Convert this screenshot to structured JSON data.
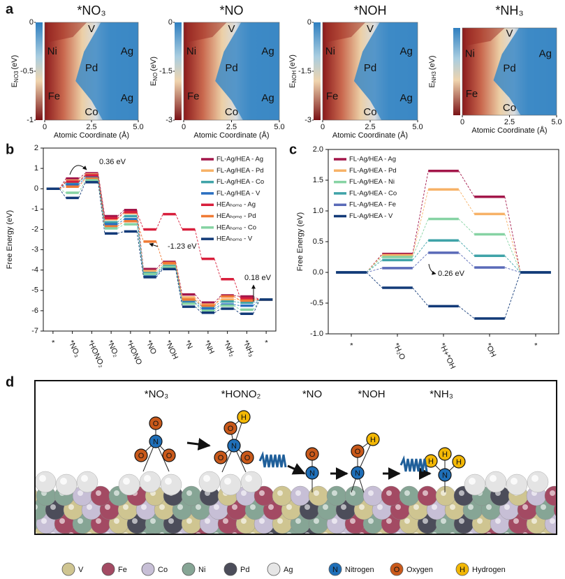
{
  "panel_labels": [
    "a",
    "b",
    "c",
    "d"
  ],
  "chart_data": [
    {
      "type": "heatmap",
      "title": "*NO₃",
      "xlabel": "Atomic Coordinate (Å)",
      "ylabel": {
        "symbol": "E",
        "subscript": "NO3",
        "unit": "(eV)"
      },
      "xlim": [
        0,
        5
      ],
      "xticks": [
        0,
        2.5,
        {
          "value": 5,
          "label": "5.0"
        }
      ],
      "clim": [
        -1,
        0
      ],
      "cticks": [
        0,
        -0.5,
        -1
      ],
      "annotations": [
        "V",
        "Ni",
        "Pd",
        "Ag",
        "Fe",
        "Co",
        "Ag"
      ]
    },
    {
      "type": "heatmap",
      "title": "*NO",
      "xlabel": "Atomic Coordinate (Å)",
      "ylabel": {
        "symbol": "E",
        "subscript": "NO",
        "unit": "(eV)"
      },
      "xlim": [
        0,
        5
      ],
      "xticks": [
        0,
        2.5,
        {
          "value": 5,
          "label": "5.0"
        }
      ],
      "clim": [
        -3,
        0
      ],
      "cticks": [
        0,
        -1.5,
        -3
      ],
      "annotations": [
        "V",
        "Ni",
        "Pd",
        "Ag",
        "Fe",
        "Co",
        "Ag"
      ]
    },
    {
      "type": "heatmap",
      "title": "*NOH",
      "xlabel": "Atomic Coordinate (Å)",
      "ylabel": {
        "symbol": "E",
        "subscript": "NOH",
        "unit": "(eV)"
      },
      "xlim": [
        0,
        5
      ],
      "xticks": [
        0,
        2.5,
        {
          "value": 5,
          "label": "5.0"
        }
      ],
      "clim": [
        -3,
        0
      ],
      "cticks": [
        0,
        -1.5,
        -3
      ],
      "annotations": [
        "V",
        "Ni",
        "Pd",
        "Ag",
        "Fe",
        "Co",
        "Ag"
      ]
    },
    {
      "type": "heatmap",
      "title": "*NH₃",
      "xlabel": "Atomic Coordinate (Å)",
      "ylabel": {
        "symbol": "E",
        "subscript": "NH3",
        "unit": "(eV)"
      },
      "xlim": [
        0,
        5
      ],
      "xticks": [
        0,
        2.5,
        {
          "value": 5,
          "label": "5.0"
        }
      ],
      "annotations": [
        "V",
        "Ni",
        "Pd",
        "Ag",
        "Fe",
        "Co"
      ]
    },
    {
      "type": "energy",
      "ylabel": "Free Energy (eV)",
      "categories": [
        "*",
        "*NO₃",
        "*HONO₂",
        "*NO₂",
        "*HONO",
        "*NO",
        "*NOH",
        "*N",
        "*NH",
        "*NH₂",
        "*NH₃",
        "*"
      ],
      "ylim": [
        -7,
        2
      ],
      "yticks": [
        -7,
        -6,
        -5,
        -4,
        -3,
        -2,
        -1,
        0,
        1,
        2
      ],
      "annotations": [
        "0.36 eV",
        "-1.23 eV",
        "0.18 eV"
      ],
      "series": [
        {
          "name": "FL-Ag/HEA - Ag",
          "color": "#a3174a",
          "values": [
            0,
            0.5,
            0.76,
            -1.35,
            -1.05,
            -3.95,
            -3.6,
            -5.2,
            -5.6,
            -5.25,
            -5.3,
            -5.45
          ]
        },
        {
          "name": "FL-Ag/HEA - Pd",
          "color": "#f7b267",
          "values": [
            0,
            0.4,
            0.7,
            -1.5,
            -1.2,
            -4.05,
            -3.7,
            -5.35,
            -5.7,
            -5.45,
            -5.45,
            -5.45
          ]
        },
        {
          "name": "FL-Ag/HEA - Co",
          "color": "#3fa3a8",
          "values": [
            0,
            0.3,
            0.62,
            -1.65,
            -1.35,
            -4.15,
            -3.8,
            -5.5,
            -5.8,
            -5.55,
            -5.6,
            -5.45
          ]
        },
        {
          "name": "FL-Ag/HEA - V",
          "color": "#2a6fc0",
          "values": [
            0,
            0.2,
            0.55,
            -1.75,
            -1.5,
            -4.25,
            -3.9,
            -5.6,
            -5.9,
            -5.7,
            -5.75,
            -5.45
          ]
        },
        {
          "name": "HEAₕₒₘₒ - Ag",
          "color": "#d81f3c",
          "values": [
            0,
            0.35,
            0.66,
            -1.45,
            -1.15,
            -2.0,
            -1.25,
            -2.0,
            -3.45,
            -4.45,
            -5.4,
            -5.45
          ]
        },
        {
          "name": "HEAₕₒₘₒ - Pd",
          "color": "#f07a35",
          "values": [
            0,
            0.1,
            0.5,
            -1.85,
            -1.6,
            -2.6,
            -3.65,
            -5.45,
            -5.75,
            -5.3,
            -5.5,
            -5.45
          ]
        },
        {
          "name": "HEAₕₒₘₒ - Co",
          "color": "#86d3a3",
          "values": [
            0,
            -0.2,
            0.42,
            -1.95,
            -1.75,
            -4.2,
            -3.85,
            -5.65,
            -6.0,
            -5.75,
            -5.95,
            -5.45
          ]
        },
        {
          "name": "HEAₕₒₘₒ - V",
          "color": "#123a78",
          "values": [
            0,
            -0.45,
            0.32,
            -2.2,
            -2.1,
            -4.35,
            -3.95,
            -5.8,
            -6.1,
            -5.9,
            -6.15,
            -5.45
          ]
        }
      ]
    },
    {
      "type": "energy",
      "ylabel": "Free Energy (eV)",
      "categories": [
        "*",
        "*H₂O",
        "*H+*OH",
        "*OH",
        "*"
      ],
      "ylim": [
        -1,
        2
      ],
      "yticks": [
        {
          "value": -1,
          "label": "-1.0"
        },
        -0.5,
        {
          "value": 0,
          "label": "0.0"
        },
        0.5,
        {
          "value": 1,
          "label": "1.0"
        },
        1.5,
        {
          "value": 2,
          "label": "2.0"
        }
      ],
      "annotations": [
        "0.26 eV"
      ],
      "series": [
        {
          "name": "FL-Ag/HEA - Ag",
          "color": "#a3174a",
          "values": [
            0,
            0.3,
            1.65,
            1.23,
            0
          ]
        },
        {
          "name": "FL-Ag/HEA - Pd",
          "color": "#f7b267",
          "values": [
            0,
            0.28,
            1.35,
            0.95,
            0
          ]
        },
        {
          "name": "FL-Ag/HEA - Ni",
          "color": "#86d3a3",
          "values": [
            0,
            0.25,
            0.87,
            0.62,
            0
          ]
        },
        {
          "name": "FL-Ag/HEA - Co",
          "color": "#3fa3a8",
          "values": [
            0,
            0.2,
            0.52,
            0.27,
            0
          ]
        },
        {
          "name": "FL-Ag/HEA - Fe",
          "color": "#5a6ab8",
          "values": [
            0,
            0.07,
            0.32,
            0.08,
            0
          ]
        },
        {
          "name": "FL-Ag/HEA - V",
          "color": "#123a78",
          "values": [
            0,
            -0.25,
            -0.55,
            -0.75,
            0
          ]
        }
      ]
    }
  ],
  "diagram": {
    "molecules": [
      {
        "label": "*NO₃",
        "atoms": [
          "O",
          "N",
          "O",
          "O"
        ]
      },
      {
        "label": "*HONO₂",
        "atoms": [
          "H",
          "O",
          "N",
          "O",
          "O"
        ]
      },
      {
        "label": "*NO",
        "atoms": [
          "O",
          "N"
        ]
      },
      {
        "label": "*NOH",
        "atoms": [
          "H",
          "O",
          "N"
        ]
      },
      {
        "label": "*NH₃",
        "atoms": [
          "H",
          "H",
          "H",
          "N"
        ]
      }
    ],
    "legend": [
      {
        "label": "V"
      },
      {
        "label": "Fe"
      },
      {
        "label": "Co"
      },
      {
        "label": "Ni"
      },
      {
        "label": "Pd"
      },
      {
        "label": "Ag"
      },
      {
        "symbol": "N",
        "label": "Nitrogen"
      },
      {
        "symbol": "O",
        "label": "Oxygen"
      },
      {
        "symbol": "H",
        "label": "Hydrogen"
      }
    ]
  }
}
